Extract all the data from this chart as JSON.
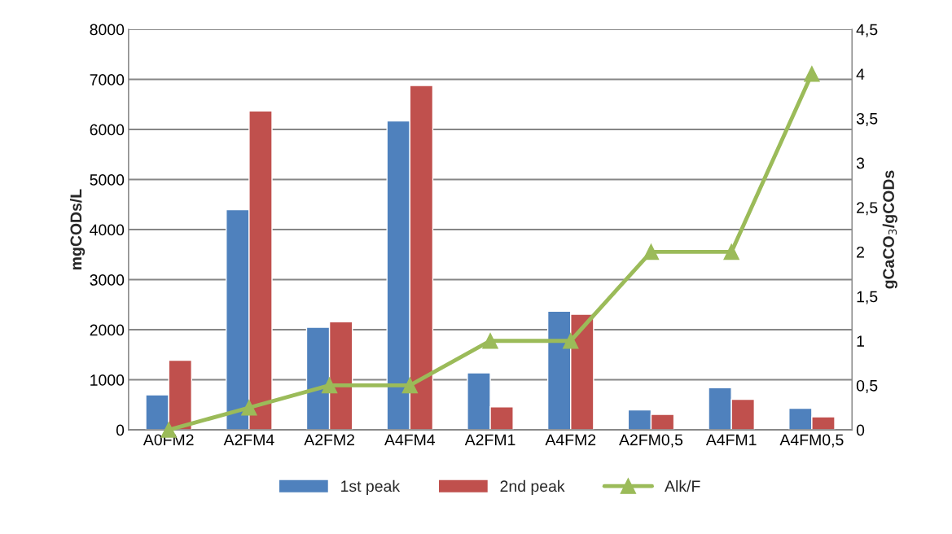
{
  "chart_data": {
    "type": "bar",
    "categories": [
      "A0FM2",
      "A2FM4",
      "A2FM2",
      "A4FM4",
      "A2FM1",
      "A4FM2",
      "A2FM0,5",
      "A4FM1",
      "A4FM0,5"
    ],
    "series": [
      {
        "name": "1st peak",
        "color": "#4f81bd",
        "values": [
          700,
          4400,
          2050,
          6170,
          1140,
          2370,
          400,
          840,
          430
        ]
      },
      {
        "name": "2nd peak",
        "color": "#c0504d",
        "values": [
          1390,
          6370,
          2160,
          6880,
          460,
          2310,
          310,
          610,
          260
        ]
      },
      {
        "name": "Alk/F",
        "type": "line",
        "axis": "y2",
        "color": "#9bbb59",
        "marker": "triangle",
        "values": [
          0,
          0.25,
          0.5,
          0.5,
          1,
          1,
          2,
          2,
          4
        ]
      }
    ],
    "ylabel": "mgCODs/L",
    "y2label": "gCaCO$_{3}$/gCODs",
    "ylim": [
      0,
      8000
    ],
    "yticks": [
      0,
      1000,
      2000,
      3000,
      4000,
      5000,
      6000,
      7000,
      8000
    ],
    "y2lim": [
      0,
      4.5
    ],
    "y2ticks": [
      0,
      {
        "value": 0.5,
        "label": "0,5"
      },
      1,
      {
        "value": 1.5,
        "label": "1,5"
      },
      2,
      {
        "value": 2.5,
        "label": "2,5"
      },
      3,
      {
        "value": 3.5,
        "label": "3,5"
      },
      4,
      {
        "value": 4.5,
        "label": "4,5"
      }
    ],
    "grid": "y",
    "legend": "bottom"
  }
}
